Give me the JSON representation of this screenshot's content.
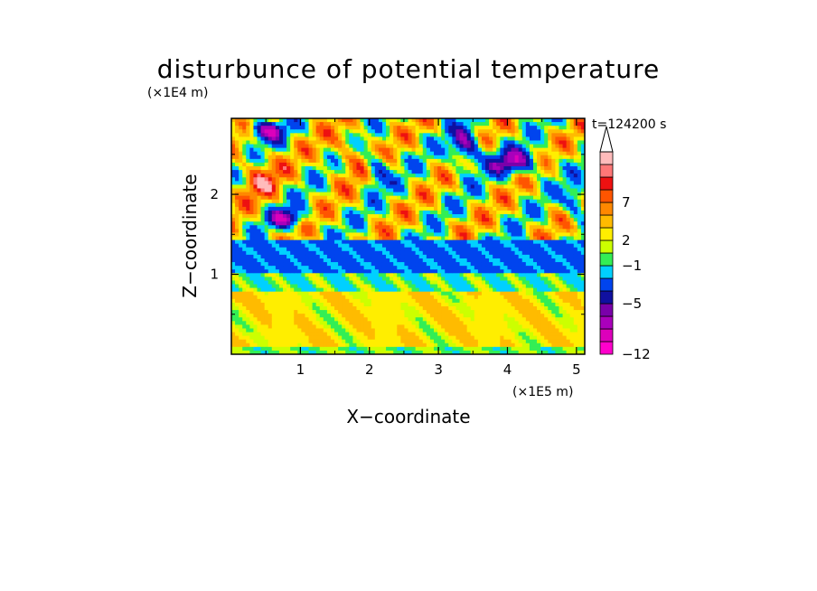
{
  "chart_data": {
    "type": "heatmap",
    "title": "disturbunce of potential temperature",
    "xlabel": "X−coordinate",
    "ylabel": "Z−coordinate",
    "x_unit": "(×1E5 m)",
    "y_unit": "(×1E4 m)",
    "time_label": "t=124200 s",
    "xlim": [
      0,
      5.12
    ],
    "ylim": [
      0,
      2.95
    ],
    "x_ticks": [
      {
        "value": 1,
        "label": "1"
      },
      {
        "value": 2,
        "label": "2"
      },
      {
        "value": 3,
        "label": "3"
      },
      {
        "value": 4,
        "label": "4"
      },
      {
        "value": 5,
        "label": "5"
      }
    ],
    "y_ticks": [
      {
        "value": 1,
        "label": "1"
      },
      {
        "value": 2,
        "label": "2"
      }
    ],
    "colorbar": {
      "colors": [
        "#ff00cc",
        "#dd00bb",
        "#aa00bb",
        "#7a00aa",
        "#1010a0",
        "#0044ee",
        "#00d0ff",
        "#33ee55",
        "#ccff00",
        "#ffee00",
        "#ffbb00",
        "#ff8800",
        "#ff5500",
        "#ee1111",
        "#ff7777",
        "#ffbbbb"
      ],
      "tick_labels": [
        {
          "index": 0,
          "label": "−12"
        },
        {
          "index": 4,
          "label": "−5"
        },
        {
          "index": 7,
          "label": "−1"
        },
        {
          "index": 9,
          "label": "2"
        },
        {
          "index": 12,
          "label": "7"
        }
      ],
      "extend": "max"
    },
    "field_description": "Disturbance field: cyan band near z≈1.2–1.4, yellow/orange near surface, strong positive (red) and negative (blue) wave patterns above z≈1.5"
  }
}
